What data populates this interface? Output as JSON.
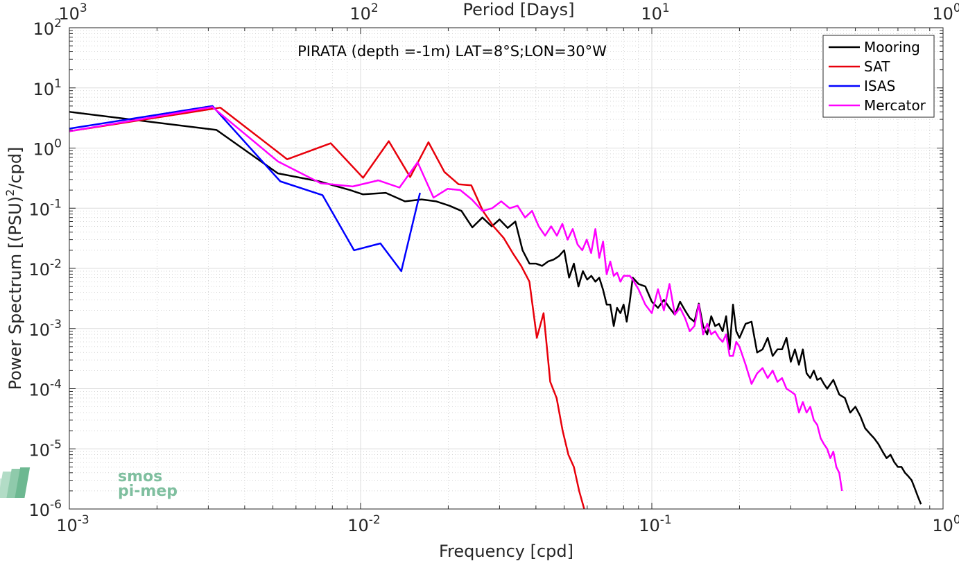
{
  "chart_data": {
    "type": "line",
    "title": "PIRATA (depth =-1m) LAT=8°S;LON=30°W",
    "xlabel": "Frequency [cpd]",
    "ylabel": "Power Spectrum [(PSU)²/cpd]",
    "ylabel_parts": {
      "before": "Power Spectrum [(PSU)",
      "sup": "2",
      "after": "/cpd]"
    },
    "top_xlabel": "Period [Days]",
    "x_scale": "log",
    "y_scale": "log",
    "xlim": [
      0.001,
      1
    ],
    "ylim": [
      1e-06,
      100
    ],
    "x_ticks": [
      {
        "value": 0.001,
        "base": "10",
        "exp": "-3"
      },
      {
        "value": 0.01,
        "base": "10",
        "exp": "-2"
      },
      {
        "value": 0.1,
        "base": "10",
        "exp": "-1"
      },
      {
        "value": 1,
        "base": "10",
        "exp": "0"
      }
    ],
    "y_ticks": [
      {
        "value": 1e-06,
        "base": "10",
        "exp": "-6"
      },
      {
        "value": 1e-05,
        "base": "10",
        "exp": "-5"
      },
      {
        "value": 0.0001,
        "base": "10",
        "exp": "-4"
      },
      {
        "value": 0.001,
        "base": "10",
        "exp": "-3"
      },
      {
        "value": 0.01,
        "base": "10",
        "exp": "-2"
      },
      {
        "value": 0.1,
        "base": "10",
        "exp": "-1"
      },
      {
        "value": 1,
        "base": "10",
        "exp": "0"
      },
      {
        "value": 10,
        "base": "10",
        "exp": "1"
      },
      {
        "value": 100,
        "base": "10",
        "exp": "2"
      }
    ],
    "top_ticks": [
      {
        "value": 0.001,
        "base": "10",
        "exp": "3"
      },
      {
        "value": 0.01,
        "base": "10",
        "exp": "2"
      },
      {
        "value": 0.1,
        "base": "10",
        "exp": "1"
      },
      {
        "value": 1,
        "base": "10",
        "exp": "0"
      }
    ],
    "grid": true,
    "legend_position": "top-right",
    "series": [
      {
        "name": "Mooring",
        "color": "#000000",
        "x": [
          0.001,
          0.0032,
          0.0052,
          0.0072,
          0.0092,
          0.0102,
          0.0122,
          0.0142,
          0.0162,
          0.0182,
          0.0202,
          0.0222,
          0.0242,
          0.0262,
          0.0282,
          0.03,
          0.032,
          0.034,
          0.036,
          0.038,
          0.04,
          0.042,
          0.044,
          0.046,
          0.048,
          0.05,
          0.052,
          0.054,
          0.056,
          0.058,
          0.06,
          0.062,
          0.064,
          0.066,
          0.068,
          0.07,
          0.072,
          0.074,
          0.076,
          0.078,
          0.08,
          0.082,
          0.084,
          0.086,
          0.09,
          0.095,
          0.1,
          0.105,
          0.11,
          0.115,
          0.12,
          0.125,
          0.13,
          0.135,
          0.14,
          0.145,
          0.15,
          0.155,
          0.16,
          0.165,
          0.17,
          0.175,
          0.18,
          0.185,
          0.19,
          0.195,
          0.2,
          0.21,
          0.22,
          0.23,
          0.24,
          0.25,
          0.26,
          0.27,
          0.28,
          0.29,
          0.3,
          0.31,
          0.32,
          0.33,
          0.34,
          0.35,
          0.36,
          0.37,
          0.38,
          0.39,
          0.4,
          0.42,
          0.44,
          0.46,
          0.48,
          0.5,
          0.52,
          0.54,
          0.56,
          0.58,
          0.6,
          0.62,
          0.64,
          0.66,
          0.68,
          0.7,
          0.72,
          0.74,
          0.76,
          0.78,
          0.8,
          0.82,
          0.84
        ],
        "y": [
          4.0,
          2.0,
          0.38,
          0.28,
          0.2,
          0.17,
          0.18,
          0.13,
          0.14,
          0.13,
          0.11,
          0.09,
          0.048,
          0.07,
          0.05,
          0.065,
          0.047,
          0.06,
          0.02,
          0.012,
          0.012,
          0.011,
          0.013,
          0.014,
          0.016,
          0.02,
          0.007,
          0.012,
          0.005,
          0.009,
          0.0065,
          0.0075,
          0.006,
          0.007,
          0.0044,
          0.0025,
          0.0025,
          0.0011,
          0.0022,
          0.0018,
          0.0025,
          0.0013,
          0.0028,
          0.007,
          0.0055,
          0.005,
          0.0028,
          0.0022,
          0.003,
          0.0022,
          0.0017,
          0.0028,
          0.002,
          0.0015,
          0.0013,
          0.0026,
          0.0011,
          0.0008,
          0.0016,
          0.0011,
          0.0012,
          0.0009,
          0.0016,
          0.00045,
          0.0025,
          0.0009,
          0.0007,
          0.0012,
          0.0013,
          0.0004,
          0.00045,
          0.0007,
          0.00035,
          0.00045,
          0.00045,
          0.0007,
          0.00028,
          0.00045,
          0.00025,
          0.00045,
          0.00018,
          0.00015,
          0.0002,
          0.00014,
          0.00015,
          0.00012,
          0.0001,
          0.00014,
          8e-05,
          7e-05,
          4e-05,
          5e-05,
          3.5e-05,
          2.2e-05,
          1.8e-05,
          1.5e-05,
          1.2e-05,
          9e-06,
          7e-06,
          8e-06,
          6e-06,
          5e-06,
          5e-06,
          4e-06,
          3.5e-06,
          3e-06,
          2.2e-06,
          1.6e-06,
          1.2e-06
        ]
      },
      {
        "name": "SAT",
        "color": "#e8000b",
        "x": [
          0.001,
          0.0033,
          0.0056,
          0.0079,
          0.0102,
          0.0125,
          0.0148,
          0.0171,
          0.0194,
          0.0217,
          0.024,
          0.0263,
          0.0286,
          0.031,
          0.0333,
          0.0356,
          0.038,
          0.0403,
          0.0425,
          0.0448,
          0.0471,
          0.0494,
          0.0517,
          0.054,
          0.0563,
          0.0586
        ],
        "y": [
          1.9,
          4.7,
          0.65,
          1.2,
          0.32,
          1.3,
          0.33,
          1.25,
          0.4,
          0.25,
          0.24,
          0.09,
          0.05,
          0.032,
          0.018,
          0.011,
          0.006,
          0.0007,
          0.0018,
          0.00013,
          7e-05,
          2e-05,
          8e-06,
          5e-06,
          2e-06,
          8e-07
        ]
      },
      {
        "name": "ISAS",
        "color": "#0000ff",
        "x": [
          0.001,
          0.0031,
          0.0053,
          0.0074,
          0.0095,
          0.0117,
          0.0138,
          0.016
        ],
        "y": [
          2.1,
          5.0,
          0.28,
          0.165,
          0.02,
          0.026,
          0.009,
          0.18
        ]
      },
      {
        "name": "Mercator",
        "color": "#ff00ff",
        "x": [
          0.001,
          0.0031,
          0.0052,
          0.0073,
          0.0094,
          0.0115,
          0.0136,
          0.0157,
          0.0178,
          0.0199,
          0.022,
          0.0241,
          0.0262,
          0.0283,
          0.0304,
          0.0325,
          0.0346,
          0.0367,
          0.0388,
          0.0409,
          0.043,
          0.0451,
          0.0472,
          0.0493,
          0.0514,
          0.0535,
          0.0556,
          0.0577,
          0.0598,
          0.0619,
          0.064,
          0.066,
          0.068,
          0.07,
          0.072,
          0.074,
          0.076,
          0.078,
          0.08,
          0.082,
          0.084,
          0.086,
          0.09,
          0.095,
          0.1,
          0.105,
          0.11,
          0.115,
          0.12,
          0.125,
          0.13,
          0.135,
          0.14,
          0.145,
          0.15,
          0.155,
          0.16,
          0.165,
          0.17,
          0.175,
          0.18,
          0.185,
          0.19,
          0.195,
          0.2,
          0.21,
          0.22,
          0.23,
          0.24,
          0.25,
          0.26,
          0.27,
          0.28,
          0.29,
          0.3,
          0.31,
          0.32,
          0.33,
          0.34,
          0.35,
          0.36,
          0.37,
          0.38,
          0.39,
          0.4,
          0.41,
          0.42,
          0.43,
          0.44,
          0.45
        ],
        "y": [
          1.9,
          4.8,
          0.6,
          0.26,
          0.23,
          0.29,
          0.22,
          0.58,
          0.15,
          0.21,
          0.2,
          0.14,
          0.09,
          0.1,
          0.13,
          0.1,
          0.11,
          0.07,
          0.09,
          0.05,
          0.035,
          0.05,
          0.035,
          0.055,
          0.03,
          0.045,
          0.025,
          0.02,
          0.03,
          0.018,
          0.045,
          0.015,
          0.028,
          0.008,
          0.013,
          0.0075,
          0.0085,
          0.006,
          0.0075,
          0.0075,
          0.0075,
          0.0065,
          0.0045,
          0.0025,
          0.0018,
          0.0045,
          0.002,
          0.0055,
          0.0017,
          0.0022,
          0.0015,
          0.0009,
          0.0011,
          0.0025,
          0.0008,
          0.0012,
          0.0008,
          0.0009,
          0.0007,
          0.0006,
          0.0008,
          0.00035,
          0.00035,
          0.0006,
          0.0005,
          0.00025,
          0.00012,
          0.00018,
          0.00022,
          0.00015,
          0.0002,
          0.00013,
          0.00015,
          0.0001,
          9e-05,
          8e-05,
          4e-05,
          6e-05,
          4e-05,
          5e-05,
          3e-05,
          2.5e-05,
          1.5e-05,
          1.2e-05,
          1e-05,
          7e-06,
          9e-06,
          5e-06,
          4e-06,
          2e-06
        ]
      }
    ]
  },
  "logo": {
    "line1": "smos",
    "line2": "pi-mep"
  }
}
